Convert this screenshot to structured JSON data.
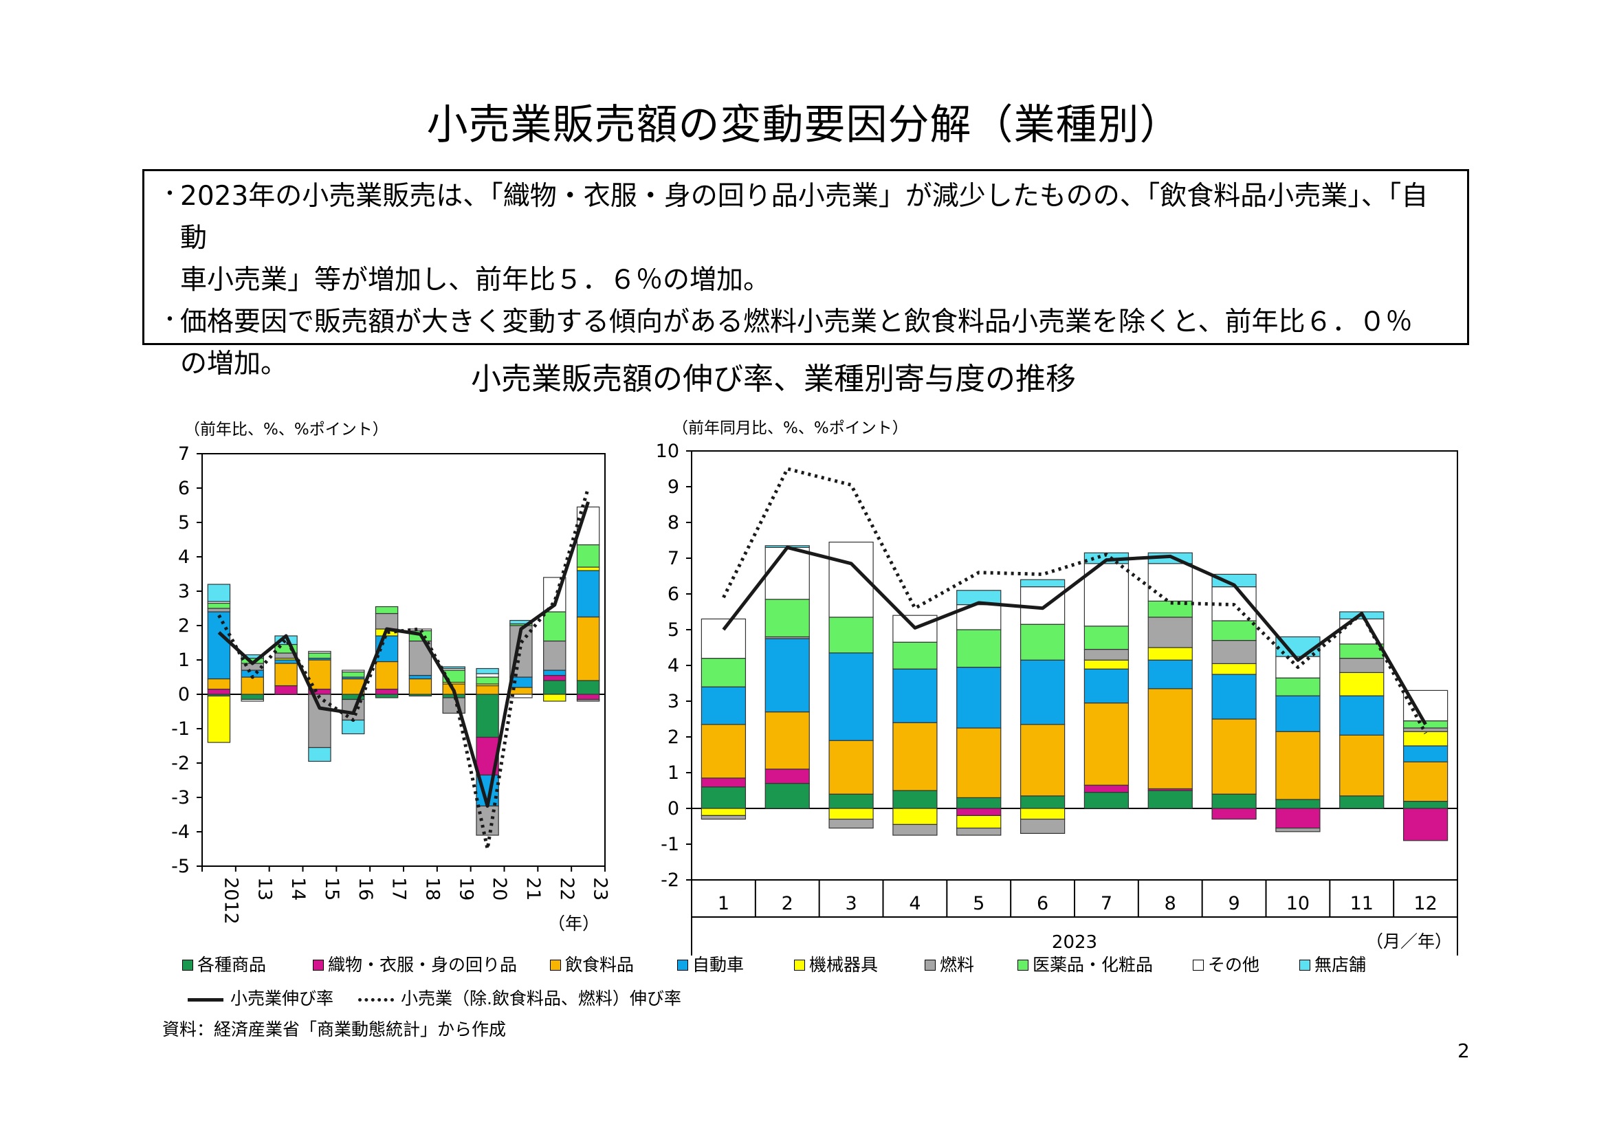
{
  "title": "小売業販売額の変動要因分解（業種別）",
  "summary": [
    {
      "mark": "・",
      "line1": "2023年の小売業販売は、「織物・衣服・身の回り品小売業」が減少したものの、「飲食料品小売業」、「自動",
      "line2": "車小売業」等が増加し、前年比５．６％の増加。"
    },
    {
      "mark": "・",
      "line1": "価格要因で販売額が大きく変動する傾向がある燃料小売業と飲食料品小売業を除くと、前年比６．０％",
      "line2": "の増加。"
    }
  ],
  "subtitle": "小売業販売額の伸び率、業種別寄与度の推移",
  "colors": {
    "各種商品": "#1a9850",
    "織物・衣服・身の回り品": "#d4148c",
    "飲食料品": "#f7b500",
    "自動車": "#0ea5e9",
    "機械器具": "#ffff00",
    "燃料": "#a6a6a6",
    "医薬品・化粧品": "#66f066",
    "その他": "#ffffff",
    "無店舗": "#5ce1f2"
  },
  "legend": {
    "categories": [
      "各種商品",
      "織物・衣服・身の回り品",
      "飲食料品",
      "自動車",
      "機械器具",
      "燃料",
      "医薬品・化粧品",
      "その他",
      "無店舗"
    ],
    "line_solid": "小売業伸び率",
    "line_dotted": "小売業（除.飲食料品、燃料）伸び率"
  },
  "source": "資料：経済産業省「商業動態統計」から作成",
  "page_number": "2",
  "chart_data": [
    {
      "type": "bar",
      "stacked": true,
      "unit_label": "（前年比、%、%ポイント）",
      "x_unit": "（年）",
      "categories": [
        "2012",
        "13",
        "14",
        "15",
        "16",
        "17",
        "18",
        "19",
        "20",
        "21",
        "22",
        "23"
      ],
      "ylim": [
        -5,
        7
      ],
      "yticks": [
        -5,
        -4,
        -3,
        -2,
        -1,
        0,
        1,
        2,
        3,
        4,
        5,
        6,
        7
      ],
      "series": [
        {
          "name": "各種商品",
          "values": [
            -0.05,
            -0.15,
            0.0,
            0.0,
            -0.15,
            -0.1,
            -0.05,
            -0.1,
            -1.25,
            0.0,
            0.4,
            0.4
          ]
        },
        {
          "name": "織物・衣服・身の回り品",
          "values": [
            0.15,
            0.0,
            0.25,
            0.15,
            0.0,
            0.15,
            0.0,
            0.0,
            -1.1,
            0.0,
            0.15,
            -0.15
          ]
        },
        {
          "name": "飲食料品",
          "values": [
            0.3,
            0.5,
            0.65,
            0.85,
            0.45,
            0.8,
            0.45,
            0.3,
            0.25,
            0.2,
            0.0,
            1.85
          ]
        },
        {
          "name": "自動車",
          "values": [
            1.95,
            0.2,
            0.1,
            0.05,
            0.05,
            0.75,
            0.1,
            0.0,
            -0.9,
            0.3,
            0.15,
            1.35
          ]
        },
        {
          "name": "機械器具",
          "values": [
            -1.35,
            0.0,
            0.05,
            0.0,
            0.0,
            0.2,
            0.0,
            0.05,
            0.05,
            0.0,
            -0.2,
            0.1
          ]
        },
        {
          "name": "燃料",
          "values": [
            0.1,
            0.2,
            0.15,
            -1.55,
            -0.6,
            0.45,
            1.0,
            -0.45,
            -0.85,
            1.5,
            0.85,
            -0.05
          ]
        },
        {
          "name": "医薬品・化粧品",
          "values": [
            0.15,
            0.15,
            0.25,
            0.15,
            0.15,
            0.2,
            0.3,
            0.35,
            0.2,
            0.05,
            0.85,
            0.65
          ]
        },
        {
          "name": "その他",
          "values": [
            0.05,
            -0.05,
            0.0,
            0.05,
            0.05,
            0.0,
            0.05,
            0.05,
            0.1,
            -0.1,
            1.0,
            1.1
          ]
        },
        {
          "name": "無店舗",
          "values": [
            0.5,
            0.1,
            0.25,
            -0.4,
            -0.4,
            0.0,
            0.0,
            0.05,
            0.15,
            0.1,
            0.0,
            0.0
          ]
        }
      ],
      "line_solid": [
        1.8,
        0.9,
        1.7,
        -0.4,
        -0.55,
        1.9,
        1.75,
        0.1,
        -3.25,
        1.9,
        2.6,
        5.6
      ],
      "line_dotted": [
        2.3,
        0.5,
        1.6,
        -0.1,
        -0.75,
        1.8,
        1.9,
        0.1,
        -4.5,
        1.5,
        2.7,
        6.0
      ]
    },
    {
      "type": "bar",
      "stacked": true,
      "unit_label": "（前年同月比、%、%ポイント）",
      "x_unit": "（月／年）",
      "x_group_label": "2023",
      "categories": [
        "1",
        "2",
        "3",
        "4",
        "5",
        "6",
        "7",
        "8",
        "9",
        "10",
        "11",
        "12"
      ],
      "ylim": [
        -2,
        10
      ],
      "yticks": [
        -2,
        -1,
        0,
        1,
        2,
        3,
        4,
        5,
        6,
        7,
        8,
        9,
        10
      ],
      "series": [
        {
          "name": "各種商品",
          "values": [
            0.6,
            0.7,
            0.4,
            0.5,
            0.3,
            0.35,
            0.45,
            0.5,
            0.4,
            0.25,
            0.35,
            0.2
          ]
        },
        {
          "name": "織物・衣服・身の回り品",
          "values": [
            0.25,
            0.4,
            0.0,
            0.0,
            -0.2,
            0.0,
            0.2,
            0.05,
            -0.3,
            -0.55,
            0.0,
            -0.9
          ]
        },
        {
          "name": "飲食料品",
          "values": [
            1.5,
            1.6,
            1.5,
            1.9,
            1.95,
            2.0,
            2.3,
            2.8,
            2.1,
            1.9,
            1.7,
            1.1
          ]
        },
        {
          "name": "自動車",
          "values": [
            1.05,
            2.05,
            2.45,
            1.5,
            1.7,
            1.8,
            0.95,
            0.8,
            1.25,
            1.0,
            1.1,
            0.45
          ]
        },
        {
          "name": "機械器具",
          "values": [
            -0.2,
            0.0,
            -0.3,
            -0.45,
            -0.35,
            -0.3,
            0.25,
            0.35,
            0.3,
            0.0,
            0.65,
            0.4
          ]
        },
        {
          "name": "燃料",
          "values": [
            -0.1,
            0.05,
            -0.25,
            -0.3,
            -0.2,
            -0.4,
            0.3,
            0.85,
            0.65,
            -0.1,
            0.4,
            0.1
          ]
        },
        {
          "name": "医薬品・化粧品",
          "values": [
            0.8,
            1.05,
            1.0,
            0.75,
            1.05,
            1.0,
            0.65,
            0.45,
            0.55,
            0.5,
            0.4,
            0.2
          ]
        },
        {
          "name": "その他",
          "values": [
            1.1,
            1.45,
            2.1,
            0.75,
            0.7,
            1.05,
            1.75,
            1.05,
            0.95,
            0.6,
            0.7,
            0.85
          ]
        },
        {
          "name": "無店舗",
          "values": [
            0.0,
            0.05,
            0.0,
            0.0,
            0.4,
            0.2,
            0.3,
            0.3,
            0.35,
            0.55,
            0.2,
            0.0
          ]
        }
      ],
      "line_solid": [
        5.0,
        7.3,
        6.85,
        5.05,
        5.75,
        5.6,
        6.95,
        7.05,
        6.25,
        4.15,
        5.45,
        2.35
      ],
      "line_dotted": [
        5.9,
        9.5,
        9.05,
        5.6,
        6.6,
        6.55,
        7.1,
        5.75,
        5.7,
        3.95,
        5.45,
        2.1
      ]
    }
  ]
}
